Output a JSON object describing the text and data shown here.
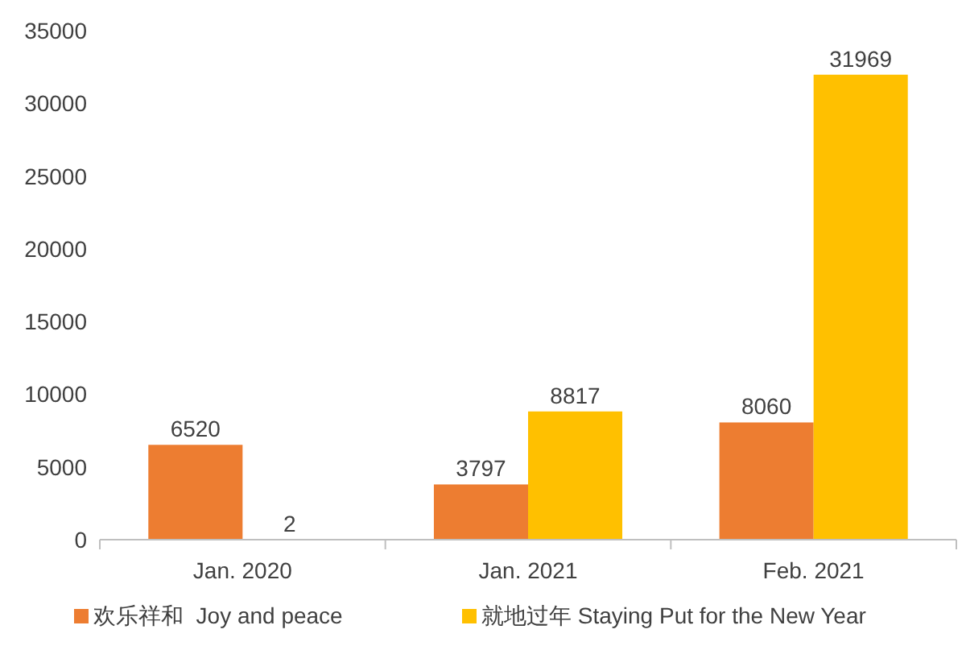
{
  "chart_data": {
    "type": "bar",
    "categories": [
      "Jan. 2020",
      "Jan. 2021",
      "Feb. 2021"
    ],
    "series": [
      {
        "name": "欢乐祥和  Joy and peace",
        "color": "#ed7d31",
        "values": [
          6520,
          3797,
          8060
        ]
      },
      {
        "name": "就地过年 Staying Put for the New Year",
        "color": "#ffc000",
        "values": [
          2,
          8817,
          31969
        ]
      }
    ],
    "ylim": [
      0,
      35000
    ],
    "yticks": [
      0,
      5000,
      10000,
      15000,
      20000,
      25000,
      30000,
      35000
    ],
    "data_labels": true,
    "legend": "bottom"
  }
}
